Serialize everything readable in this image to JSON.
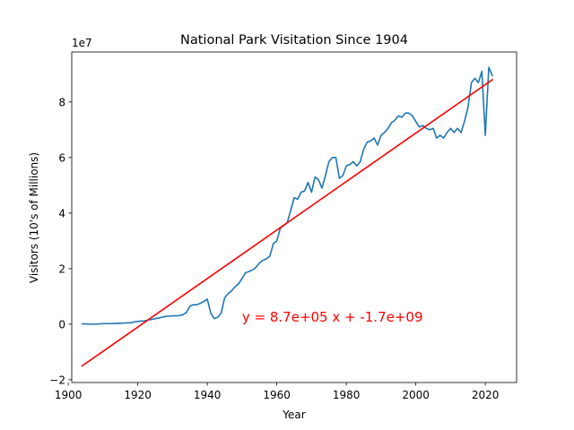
{
  "chart_data": {
    "type": "line",
    "title": "National Park Visitation Since 1904",
    "xlabel": "Year",
    "ylabel": "Visitors (10's of Millions)",
    "y_offset_text": "1e7",
    "xlim": [
      1901,
      2029
    ],
    "ylim": [
      -2.1,
      9.8
    ],
    "y_scale_note": "values in units of 1e7 visitors",
    "x_ticks": [
      1900,
      1920,
      1940,
      1960,
      1980,
      2000,
      2020
    ],
    "y_ticks": [
      -2,
      0,
      2,
      4,
      6,
      8
    ],
    "grid": false,
    "series": [
      {
        "kind": "observed",
        "color": "#1f77b4",
        "x": [
          1904,
          1905,
          1906,
          1907,
          1908,
          1909,
          1910,
          1911,
          1912,
          1913,
          1914,
          1915,
          1916,
          1917,
          1918,
          1919,
          1920,
          1921,
          1922,
          1923,
          1924,
          1925,
          1926,
          1927,
          1928,
          1929,
          1930,
          1931,
          1932,
          1933,
          1934,
          1935,
          1936,
          1937,
          1938,
          1939,
          1940,
          1941,
          1942,
          1943,
          1944,
          1945,
          1946,
          1947,
          1948,
          1949,
          1950,
          1951,
          1952,
          1953,
          1954,
          1955,
          1956,
          1957,
          1958,
          1959,
          1960,
          1961,
          1962,
          1963,
          1964,
          1965,
          1966,
          1967,
          1968,
          1969,
          1970,
          1971,
          1972,
          1973,
          1974,
          1975,
          1976,
          1977,
          1978,
          1979,
          1980,
          1981,
          1982,
          1983,
          1984,
          1985,
          1986,
          1987,
          1988,
          1989,
          1990,
          1991,
          1992,
          1993,
          1994,
          1995,
          1996,
          1997,
          1998,
          1999,
          2000,
          2001,
          2002,
          2003,
          2004,
          2005,
          2006,
          2007,
          2008,
          2009,
          2010,
          2011,
          2012,
          2013,
          2014,
          2015,
          2016,
          2017,
          2018,
          2019,
          2020,
          2021,
          2022
        ],
        "y": [
          0.01,
          0.01,
          0.0,
          0.0,
          0.0,
          0.01,
          0.02,
          0.02,
          0.02,
          0.02,
          0.03,
          0.03,
          0.04,
          0.05,
          0.05,
          0.08,
          0.1,
          0.11,
          0.12,
          0.15,
          0.17,
          0.2,
          0.22,
          0.25,
          0.28,
          0.29,
          0.3,
          0.3,
          0.31,
          0.34,
          0.42,
          0.65,
          0.7,
          0.7,
          0.75,
          0.82,
          0.9,
          0.4,
          0.2,
          0.25,
          0.4,
          0.95,
          1.1,
          1.2,
          1.35,
          1.45,
          1.65,
          1.85,
          1.9,
          1.95,
          2.05,
          2.2,
          2.3,
          2.35,
          2.45,
          2.9,
          3.0,
          3.45,
          3.55,
          3.65,
          4.1,
          4.55,
          4.5,
          4.75,
          4.8,
          5.1,
          4.75,
          5.3,
          5.2,
          4.9,
          5.35,
          5.85,
          6.0,
          6.0,
          5.25,
          5.35,
          5.7,
          5.75,
          5.85,
          5.7,
          5.85,
          6.3,
          6.55,
          6.6,
          6.7,
          6.45,
          6.8,
          6.9,
          7.05,
          7.25,
          7.35,
          7.5,
          7.45,
          7.6,
          7.6,
          7.5,
          7.3,
          7.1,
          7.15,
          7.05,
          7.0,
          7.05,
          6.7,
          6.8,
          6.7,
          6.9,
          7.05,
          6.9,
          7.05,
          6.9,
          7.3,
          7.8,
          8.7,
          8.85,
          8.7,
          9.1,
          6.8,
          9.25,
          8.95
        ]
      },
      {
        "kind": "fit",
        "color": "#ff0000",
        "x": [
          1904,
          2022
        ],
        "y": [
          -1.5,
          8.8
        ]
      }
    ],
    "annotations": [
      {
        "text": "y = 8.7e+05 x + -1.7e+09",
        "x": 1950,
        "y": 0.1,
        "color": "#ff0000"
      }
    ]
  }
}
